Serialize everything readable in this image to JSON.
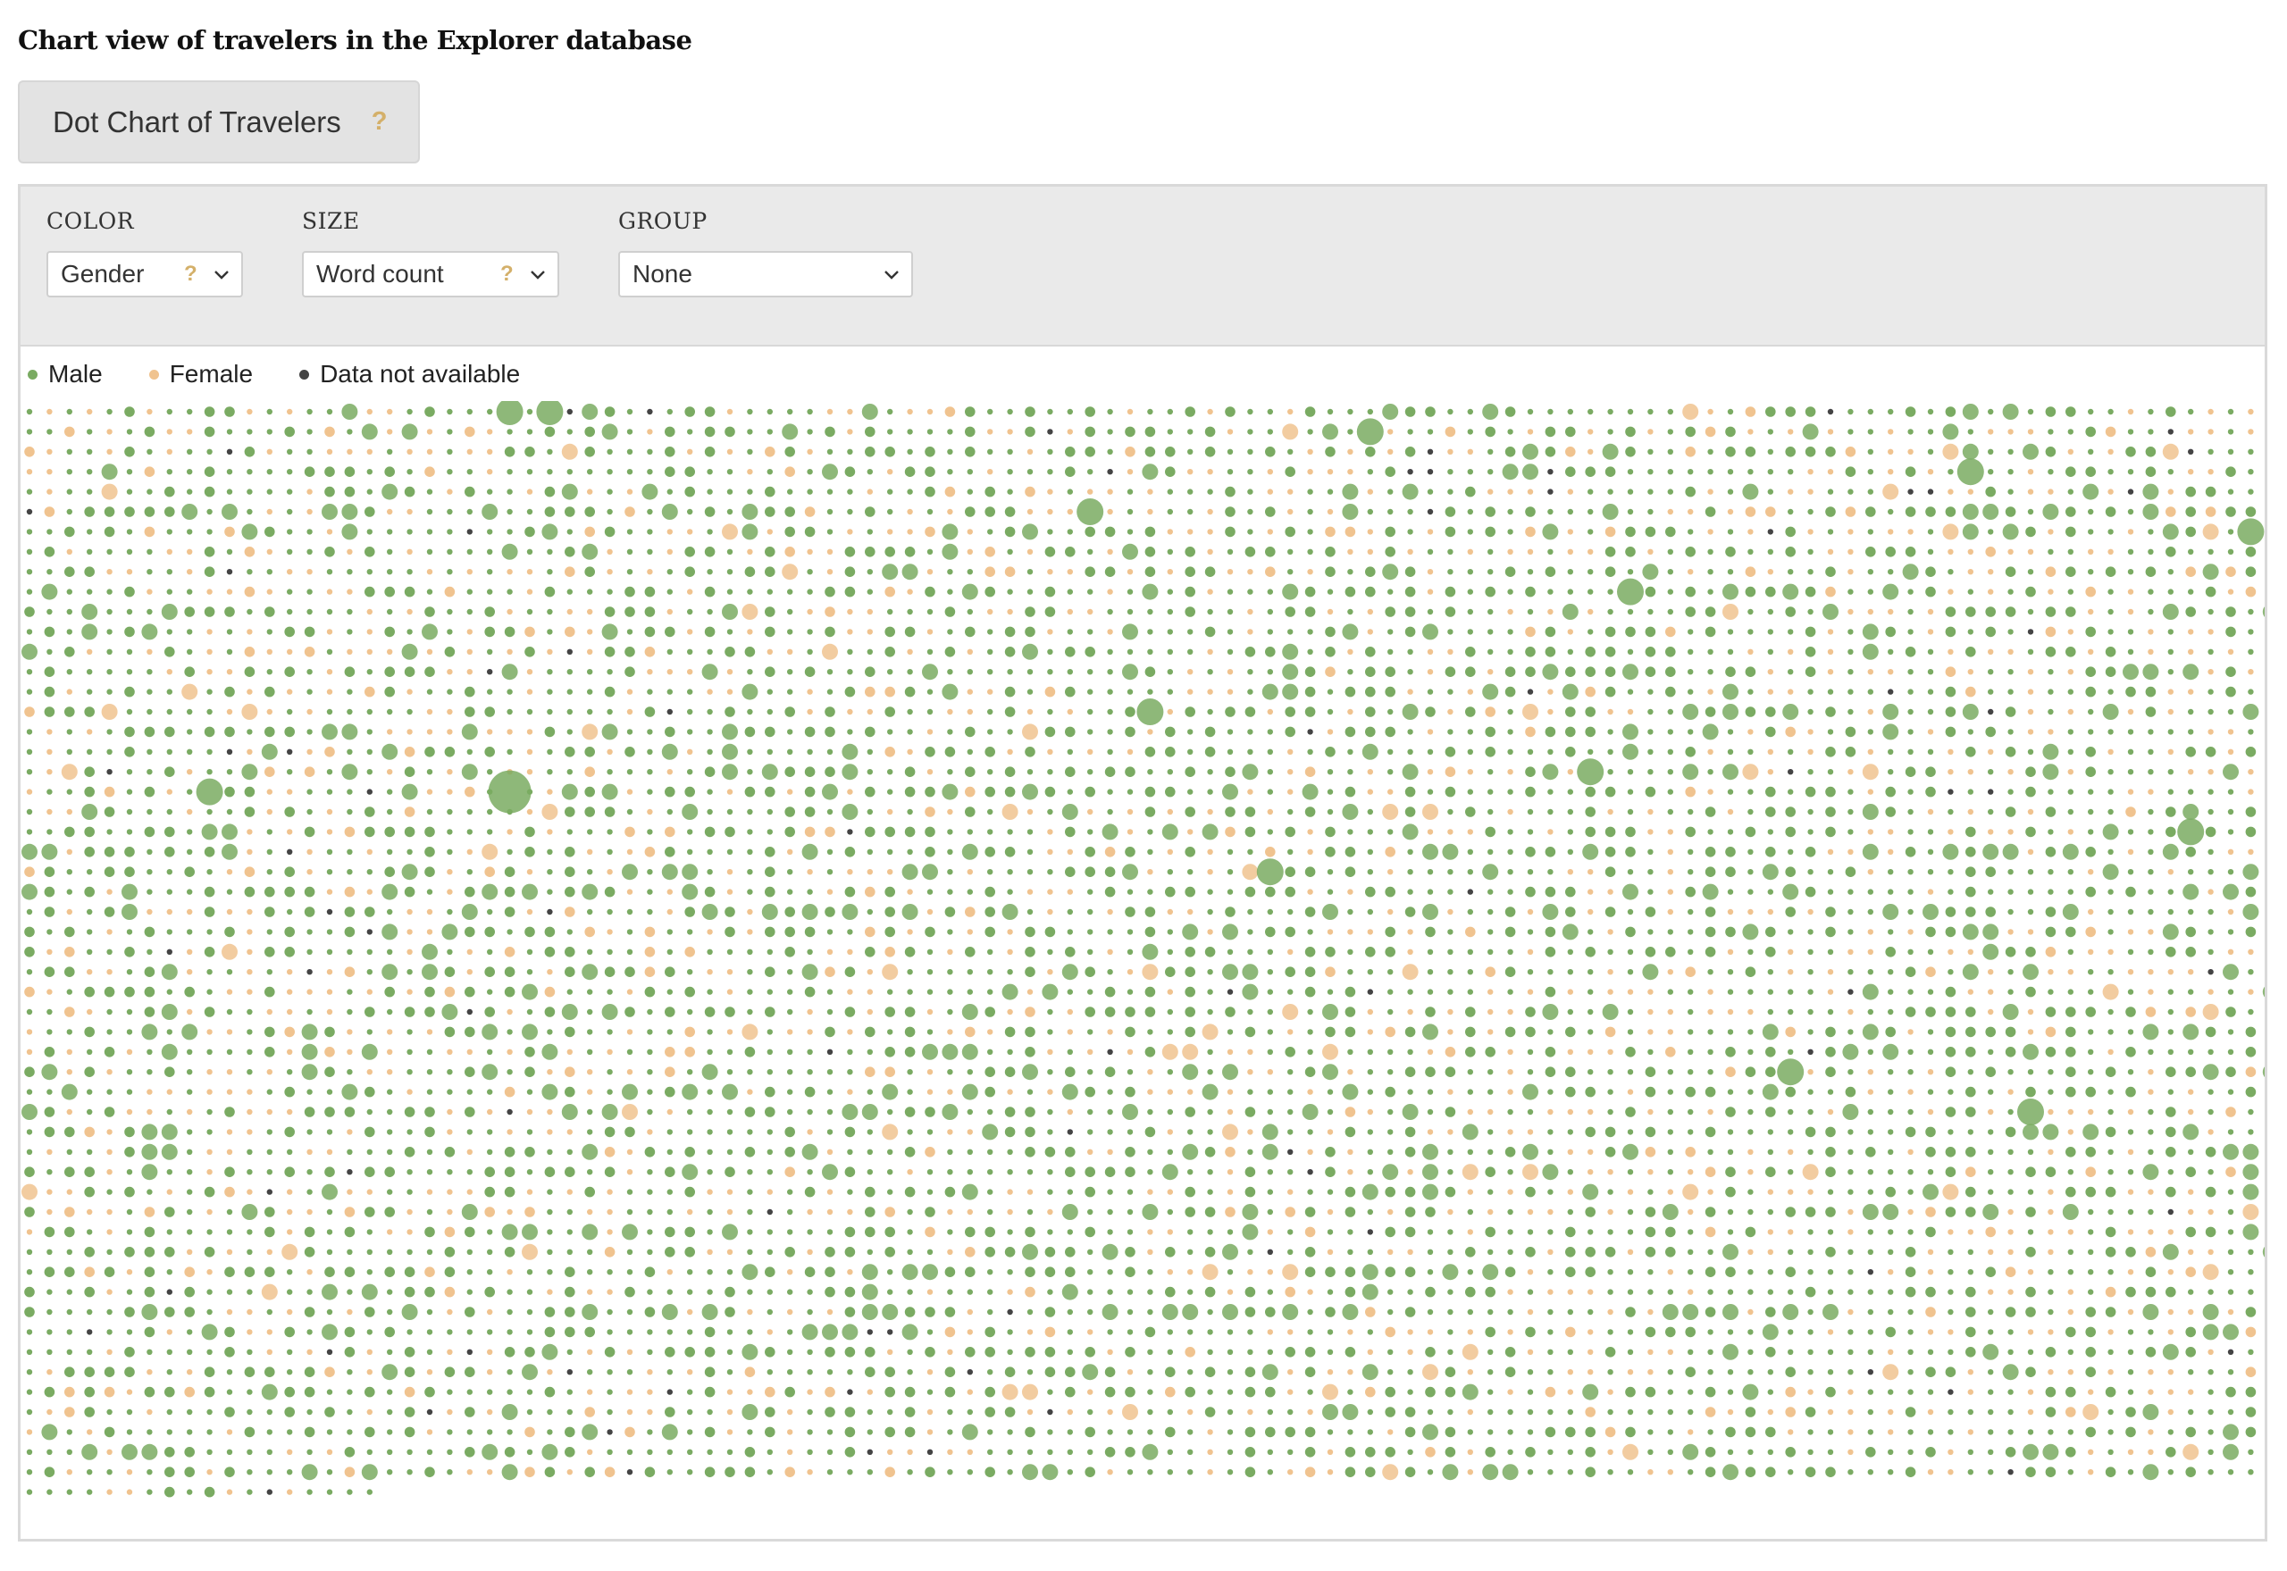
{
  "page": {
    "title": "Chart view of travelers in the Explorer database"
  },
  "view_button": {
    "label": "Dot Chart of Travelers",
    "help": "?"
  },
  "controls": {
    "color": {
      "label": "COLOR",
      "value": "Gender",
      "help": "?",
      "icon": "chevron-down-icon"
    },
    "size": {
      "label": "SIZE",
      "value": "Word count",
      "help": "?",
      "icon": "chevron-down-icon"
    },
    "group": {
      "label": "GROUP",
      "value": "None",
      "icon": "chevron-down-icon"
    }
  },
  "legend": [
    {
      "label": "Male",
      "color": "#7aab62"
    },
    {
      "label": "Female",
      "color": "#f0c38f"
    },
    {
      "label": "Data not available",
      "color": "#444444"
    }
  ],
  "chart_data": {
    "type": "scatter",
    "encoding": "dot grid, one dot per traveler; color = gender, size = word count",
    "color_by": "Gender",
    "size_by": "Word count",
    "group_by": "None",
    "grid": false,
    "legend_position": "top-left",
    "series": [
      {
        "name": "Male",
        "color": "#7aab62"
      },
      {
        "name": "Female",
        "color": "#f0c38f"
      },
      {
        "name": "Data not available",
        "color": "#444444"
      }
    ],
    "big_dots": [
      {
        "row": 0,
        "col": 24,
        "cat": 0,
        "size": 3
      },
      {
        "row": 0,
        "col": 26,
        "cat": 0,
        "size": 3
      },
      {
        "row": 1,
        "col": 29,
        "cat": 0,
        "size": 2
      },
      {
        "row": 1,
        "col": 67,
        "cat": 0,
        "size": 3
      },
      {
        "row": 2,
        "col": 27,
        "cat": 1,
        "size": 2
      },
      {
        "row": 2,
        "col": 107,
        "cat": 1,
        "size": 2
      },
      {
        "row": 3,
        "col": 97,
        "cat": 0,
        "size": 3
      },
      {
        "row": 3,
        "col": 6,
        "cat": 1,
        "size": 1
      },
      {
        "row": 4,
        "col": 31,
        "cat": 0,
        "size": 2
      },
      {
        "row": 4,
        "col": 19,
        "cat": 0,
        "size": 1
      },
      {
        "row": 5,
        "col": 66,
        "cat": 0,
        "size": 2
      },
      {
        "row": 5,
        "col": 53,
        "cat": 0,
        "size": 3
      },
      {
        "row": 6,
        "col": 50,
        "cat": 0,
        "size": 2
      },
      {
        "row": 6,
        "col": 111,
        "cat": 0,
        "size": 3
      },
      {
        "row": 8,
        "col": 27,
        "cat": 1,
        "size": 1
      },
      {
        "row": 8,
        "col": 68,
        "cat": 0,
        "size": 2
      },
      {
        "row": 9,
        "col": 80,
        "cat": 0,
        "size": 3
      },
      {
        "row": 10,
        "col": 35,
        "cat": 0,
        "size": 2
      },
      {
        "row": 10,
        "col": 85,
        "cat": 1,
        "size": 2
      },
      {
        "row": 11,
        "col": 55,
        "cat": 0,
        "size": 2
      },
      {
        "row": 13,
        "col": 34,
        "cat": 0,
        "size": 2
      },
      {
        "row": 14,
        "col": 8,
        "cat": 1,
        "size": 2
      },
      {
        "row": 15,
        "col": 56,
        "cat": 0,
        "size": 3
      },
      {
        "row": 16,
        "col": 93,
        "cat": 0,
        "size": 2
      },
      {
        "row": 17,
        "col": 12,
        "cat": 0,
        "size": 2
      },
      {
        "row": 18,
        "col": 78,
        "cat": 0,
        "size": 3
      },
      {
        "row": 19,
        "col": 9,
        "cat": 0,
        "size": 3
      },
      {
        "row": 19,
        "col": 24,
        "cat": 0,
        "size": 4
      },
      {
        "row": 20,
        "col": 68,
        "cat": 1,
        "size": 2
      },
      {
        "row": 21,
        "col": 108,
        "cat": 0,
        "size": 3
      },
      {
        "row": 22,
        "col": 47,
        "cat": 0,
        "size": 2
      },
      {
        "row": 23,
        "col": 62,
        "cat": 0,
        "size": 3
      },
      {
        "row": 24,
        "col": 5,
        "cat": 0,
        "size": 2
      },
      {
        "row": 25,
        "col": 37,
        "cat": 0,
        "size": 2
      },
      {
        "row": 26,
        "col": 77,
        "cat": 0,
        "size": 2
      },
      {
        "row": 27,
        "col": 10,
        "cat": 1,
        "size": 2
      },
      {
        "row": 28,
        "col": 56,
        "cat": 1,
        "size": 2
      },
      {
        "row": 29,
        "col": 104,
        "cat": 1,
        "size": 2
      },
      {
        "row": 30,
        "col": 27,
        "cat": 0,
        "size": 2
      },
      {
        "row": 31,
        "col": 70,
        "cat": 0,
        "size": 2
      },
      {
        "row": 32,
        "col": 14,
        "cat": 0,
        "size": 2
      },
      {
        "row": 33,
        "col": 88,
        "cat": 0,
        "size": 3
      },
      {
        "row": 34,
        "col": 43,
        "cat": 0,
        "size": 2
      },
      {
        "row": 35,
        "col": 100,
        "cat": 0,
        "size": 3
      },
      {
        "row": 36,
        "col": 6,
        "cat": 0,
        "size": 2
      },
      {
        "row": 36,
        "col": 60,
        "cat": 1,
        "size": 2
      },
      {
        "row": 37,
        "col": 80,
        "cat": 0,
        "size": 2
      },
      {
        "row": 38,
        "col": 40,
        "cat": 0,
        "size": 2
      },
      {
        "row": 39,
        "col": 96,
        "cat": 1,
        "size": 2
      },
      {
        "row": 40,
        "col": 22,
        "cat": 0,
        "size": 2
      },
      {
        "row": 41,
        "col": 111,
        "cat": 0,
        "size": 2
      },
      {
        "row": 42,
        "col": 54,
        "cat": 0,
        "size": 2
      },
      {
        "row": 43,
        "col": 73,
        "cat": 0,
        "size": 2
      },
      {
        "row": 44,
        "col": 15,
        "cat": 0,
        "size": 2
      },
      {
        "row": 45,
        "col": 88,
        "cat": 0,
        "size": 2
      },
      {
        "row": 46,
        "col": 40,
        "cat": 0,
        "size": 2
      },
      {
        "row": 47,
        "col": 107,
        "cat": 0,
        "size": 2
      },
      {
        "row": 48,
        "col": 18,
        "cat": 0,
        "size": 2
      },
      {
        "row": 49,
        "col": 4,
        "cat": 1,
        "size": 1
      },
      {
        "row": 50,
        "col": 65,
        "cat": 0,
        "size": 2
      },
      {
        "row": 51,
        "col": 32,
        "cat": 0,
        "size": 2
      },
      {
        "row": 52,
        "col": 101,
        "cat": 0,
        "size": 2
      },
      {
        "row": 53,
        "col": 85,
        "cat": 0,
        "size": 2
      }
    ]
  }
}
